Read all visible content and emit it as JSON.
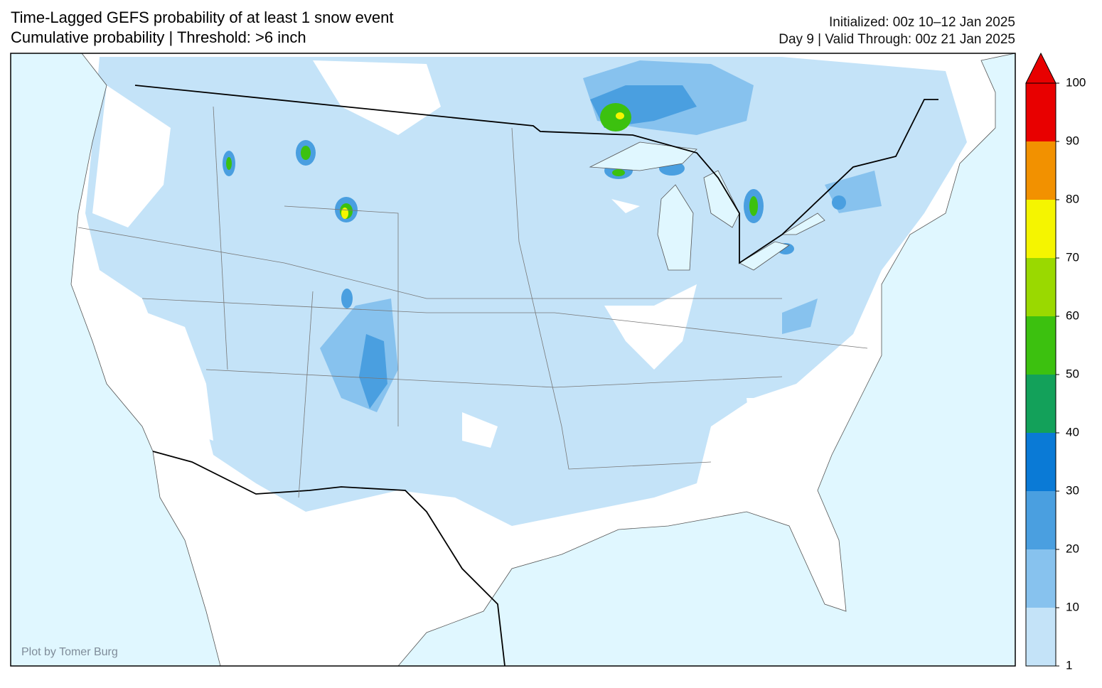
{
  "header": {
    "title_line1": "Time-Lagged GEFS probability of at least 1 snow event",
    "title_line2": "Cumulative probability | Threshold: >6 inch",
    "info_line1": "Initialized: 00z 10–12 Jan 2025",
    "info_line2": "Day 9 | Valid Through: 00z 21 Jan 2025"
  },
  "credit": "Plot by Tomer Burg",
  "colorbar": {
    "levels": [
      1,
      10,
      20,
      30,
      40,
      50,
      60,
      70,
      80,
      90,
      100
    ],
    "colors": [
      "#c4e3f8",
      "#87c2ee",
      "#4a9fe0",
      "#0a7ad6",
      "#13a15a",
      "#3cc10f",
      "#9ad900",
      "#f5f500",
      "#f29100",
      "#e80000"
    ]
  }
}
